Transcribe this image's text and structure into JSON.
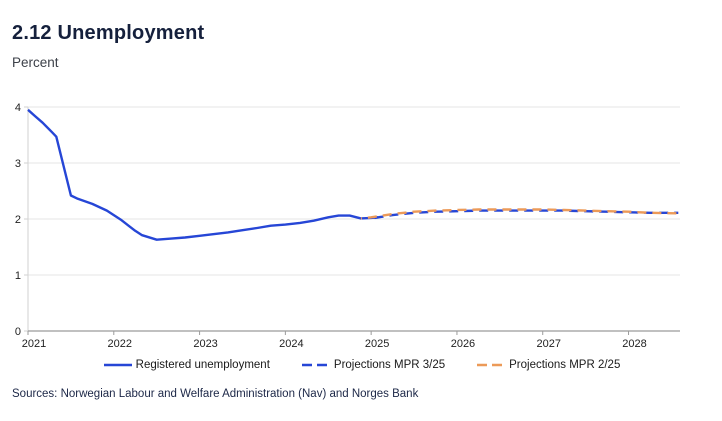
{
  "header": {
    "title": "2.12 Unemployment",
    "subtitle": "Percent"
  },
  "footer": {
    "sources": "Sources: Norwegian Labour and Welfare Administration (Nav) and Norges Bank"
  },
  "colors": {
    "title_navy": "#15203c",
    "series_blue": "#2646d6",
    "series_orange": "#ec9a58",
    "gridline": "#e6e6e6",
    "bottom_axis": "#9b9b9b",
    "left_axis": "#d2d2d2",
    "tick_text": "#1f1f1f"
  },
  "chart_data": {
    "type": "line",
    "title": "2.12 Unemployment",
    "ylabel": "Percent",
    "xlabel": "",
    "xlim": [
      2021,
      2028.6
    ],
    "ylim": [
      0,
      4
    ],
    "yticks": [
      0,
      1,
      2,
      3,
      4
    ],
    "xticks": [
      2021,
      2022,
      2023,
      2024,
      2025,
      2026,
      2027,
      2028
    ],
    "grid": "horizontal",
    "legend_position": "bottom",
    "series": [
      {
        "name": "Registered unemployment",
        "style": "solid",
        "color": "#2646d6",
        "points": [
          [
            2021.0,
            3.95
          ],
          [
            2021.08,
            3.84
          ],
          [
            2021.17,
            3.72
          ],
          [
            2021.28,
            3.55
          ],
          [
            2021.33,
            3.47
          ],
          [
            2021.5,
            2.42
          ],
          [
            2021.58,
            2.36
          ],
          [
            2021.75,
            2.27
          ],
          [
            2021.92,
            2.15
          ],
          [
            2022.0,
            2.07
          ],
          [
            2022.08,
            1.99
          ],
          [
            2022.25,
            1.79
          ],
          [
            2022.33,
            1.71
          ],
          [
            2022.5,
            1.63
          ],
          [
            2022.67,
            1.65
          ],
          [
            2022.83,
            1.67
          ],
          [
            2023.0,
            1.7
          ],
          [
            2023.17,
            1.73
          ],
          [
            2023.33,
            1.76
          ],
          [
            2023.5,
            1.8
          ],
          [
            2023.67,
            1.84
          ],
          [
            2023.83,
            1.88
          ],
          [
            2024.0,
            1.9
          ],
          [
            2024.17,
            1.93
          ],
          [
            2024.33,
            1.97
          ],
          [
            2024.5,
            2.03
          ],
          [
            2024.62,
            2.06
          ],
          [
            2024.75,
            2.06
          ],
          [
            2024.88,
            2.01
          ],
          [
            2025.0,
            2.02
          ],
          [
            2025.08,
            2.03
          ]
        ]
      },
      {
        "name": "Projections MPR 3/25",
        "style": "dashed",
        "color": "#2646d6",
        "dashoffset": 0,
        "points": [
          [
            2025.04,
            2.02
          ],
          [
            2025.25,
            2.07
          ],
          [
            2025.5,
            2.11
          ],
          [
            2025.75,
            2.13
          ],
          [
            2026.0,
            2.14
          ],
          [
            2026.25,
            2.15
          ],
          [
            2026.5,
            2.15
          ],
          [
            2026.75,
            2.15
          ],
          [
            2027.0,
            2.15
          ],
          [
            2027.25,
            2.15
          ],
          [
            2027.5,
            2.14
          ],
          [
            2027.75,
            2.13
          ],
          [
            2028.0,
            2.12
          ],
          [
            2028.25,
            2.11
          ],
          [
            2028.58,
            2.11
          ]
        ]
      },
      {
        "name": "Projections MPR 2/25",
        "style": "dashed",
        "color": "#ec9a58",
        "dashoffset": 8,
        "points": [
          [
            2024.88,
            2.01
          ],
          [
            2025.0,
            2.03
          ],
          [
            2025.25,
            2.09
          ],
          [
            2025.5,
            2.13
          ],
          [
            2025.75,
            2.15
          ],
          [
            2026.0,
            2.16
          ],
          [
            2026.25,
            2.17
          ],
          [
            2026.5,
            2.17
          ],
          [
            2026.75,
            2.17
          ],
          [
            2027.0,
            2.17
          ],
          [
            2027.25,
            2.16
          ],
          [
            2027.5,
            2.15
          ],
          [
            2027.75,
            2.14
          ],
          [
            2028.0,
            2.13
          ],
          [
            2028.25,
            2.11
          ],
          [
            2028.58,
            2.1
          ]
        ]
      }
    ]
  }
}
